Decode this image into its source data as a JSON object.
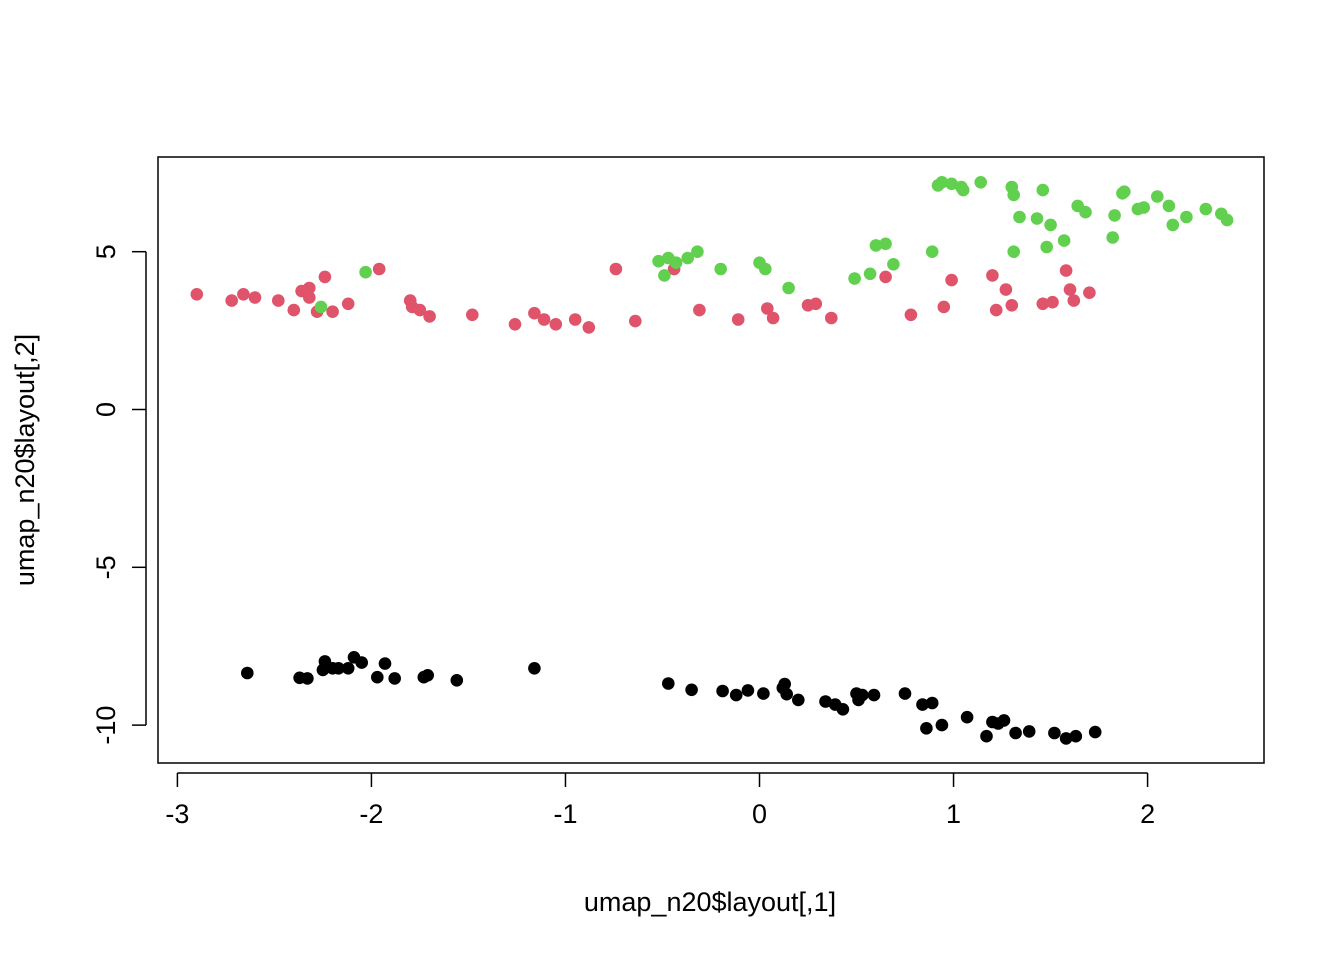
{
  "chart_data": {
    "type": "scatter",
    "xlabel": "umap_n20$layout[,1]",
    "ylabel": "umap_n20$layout[,2]",
    "xlim": [
      -3.1,
      2.6
    ],
    "ylim": [
      -11.2,
      8.0
    ],
    "x_ticks": [
      -3,
      -2,
      -1,
      0,
      1,
      2
    ],
    "x_tick_labels": [
      "-3",
      "-2",
      "-1",
      "0",
      "1",
      "2"
    ],
    "y_ticks": [
      -10,
      -5,
      0,
      5
    ],
    "y_tick_labels": [
      "-10",
      "-5",
      "0",
      "5"
    ],
    "grid": false,
    "legend": "none",
    "series": [
      {
        "color": "#000000",
        "points": [
          [
            -2.64,
            -8.35
          ],
          [
            -2.37,
            -8.5
          ],
          [
            -2.33,
            -8.52
          ],
          [
            -2.25,
            -8.25
          ],
          [
            -2.24,
            -7.98
          ],
          [
            -2.2,
            -8.2
          ],
          [
            -2.17,
            -8.2
          ],
          [
            -2.12,
            -8.2
          ],
          [
            -2.09,
            -7.85
          ],
          [
            -2.05,
            -8.02
          ],
          [
            -1.97,
            -8.48
          ],
          [
            -1.93,
            -8.05
          ],
          [
            -1.88,
            -8.52
          ],
          [
            -1.73,
            -8.48
          ],
          [
            -1.71,
            -8.42
          ],
          [
            -1.56,
            -8.58
          ],
          [
            -1.16,
            -8.2
          ],
          [
            -0.47,
            -8.68
          ],
          [
            -0.35,
            -8.88
          ],
          [
            -0.19,
            -8.92
          ],
          [
            -0.12,
            -9.05
          ],
          [
            -0.06,
            -8.9
          ],
          [
            0.02,
            -9.0
          ],
          [
            0.12,
            -8.82
          ],
          [
            0.13,
            -8.7
          ],
          [
            0.14,
            -9.02
          ],
          [
            0.2,
            -9.2
          ],
          [
            0.34,
            -9.25
          ],
          [
            0.39,
            -9.35
          ],
          [
            0.43,
            -9.5
          ],
          [
            0.5,
            -9.0
          ],
          [
            0.51,
            -9.2
          ],
          [
            0.53,
            -9.05
          ],
          [
            0.59,
            -9.05
          ],
          [
            0.75,
            -9.0
          ],
          [
            0.84,
            -9.35
          ],
          [
            0.86,
            -10.1
          ],
          [
            0.89,
            -9.3
          ],
          [
            0.94,
            -10.0
          ],
          [
            1.07,
            -9.75
          ],
          [
            1.17,
            -10.35
          ],
          [
            1.2,
            -9.9
          ],
          [
            1.23,
            -9.95
          ],
          [
            1.26,
            -9.85
          ],
          [
            1.32,
            -10.25
          ],
          [
            1.39,
            -10.2
          ],
          [
            1.52,
            -10.25
          ],
          [
            1.58,
            -10.42
          ],
          [
            1.63,
            -10.35
          ],
          [
            1.73,
            -10.22
          ]
        ]
      },
      {
        "color": "#DF536B",
        "points": [
          [
            -2.9,
            3.65
          ],
          [
            -2.72,
            3.45
          ],
          [
            -2.66,
            3.65
          ],
          [
            -2.6,
            3.55
          ],
          [
            -2.48,
            3.45
          ],
          [
            -2.4,
            3.15
          ],
          [
            -2.36,
            3.75
          ],
          [
            -2.32,
            3.85
          ],
          [
            -2.32,
            3.55
          ],
          [
            -2.28,
            3.1
          ],
          [
            -2.24,
            4.2
          ],
          [
            -2.2,
            3.1
          ],
          [
            -2.12,
            3.35
          ],
          [
            -1.96,
            4.45
          ],
          [
            -1.8,
            3.45
          ],
          [
            -1.79,
            3.25
          ],
          [
            -1.75,
            3.15
          ],
          [
            -1.7,
            2.95
          ],
          [
            -1.48,
            3.0
          ],
          [
            -1.26,
            2.7
          ],
          [
            -1.16,
            3.05
          ],
          [
            -1.11,
            2.85
          ],
          [
            -1.05,
            2.7
          ],
          [
            -0.95,
            2.85
          ],
          [
            -0.88,
            2.6
          ],
          [
            -0.74,
            4.45
          ],
          [
            -0.64,
            2.8
          ],
          [
            -0.44,
            4.45
          ],
          [
            -0.31,
            3.15
          ],
          [
            -0.11,
            2.85
          ],
          [
            0.04,
            3.2
          ],
          [
            0.07,
            2.9
          ],
          [
            0.25,
            3.3
          ],
          [
            0.29,
            3.35
          ],
          [
            0.37,
            2.9
          ],
          [
            0.65,
            4.2
          ],
          [
            0.78,
            3.0
          ],
          [
            0.95,
            3.25
          ],
          [
            0.99,
            4.1
          ],
          [
            1.2,
            4.25
          ],
          [
            1.22,
            3.15
          ],
          [
            1.27,
            3.8
          ],
          [
            1.3,
            3.3
          ],
          [
            1.46,
            3.35
          ],
          [
            1.51,
            3.4
          ],
          [
            1.58,
            4.4
          ],
          [
            1.6,
            3.8
          ],
          [
            1.62,
            3.45
          ],
          [
            1.7,
            3.7
          ]
        ]
      },
      {
        "color": "#61D04F",
        "points": [
          [
            -2.26,
            3.25
          ],
          [
            -2.03,
            4.35
          ],
          [
            -0.52,
            4.7
          ],
          [
            -0.49,
            4.25
          ],
          [
            -0.47,
            4.8
          ],
          [
            -0.43,
            4.65
          ],
          [
            -0.37,
            4.8
          ],
          [
            -0.32,
            5.0
          ],
          [
            -0.2,
            4.45
          ],
          [
            0.0,
            4.65
          ],
          [
            0.03,
            4.45
          ],
          [
            0.15,
            3.85
          ],
          [
            0.49,
            4.15
          ],
          [
            0.57,
            4.3
          ],
          [
            0.6,
            5.2
          ],
          [
            0.65,
            5.25
          ],
          [
            0.69,
            4.6
          ],
          [
            0.89,
            5.0
          ],
          [
            0.92,
            7.1
          ],
          [
            0.94,
            7.2
          ],
          [
            0.99,
            7.15
          ],
          [
            1.04,
            7.05
          ],
          [
            1.05,
            6.95
          ],
          [
            1.14,
            7.2
          ],
          [
            1.3,
            7.05
          ],
          [
            1.31,
            6.8
          ],
          [
            1.31,
            5.0
          ],
          [
            1.34,
            6.1
          ],
          [
            1.43,
            6.05
          ],
          [
            1.46,
            6.95
          ],
          [
            1.48,
            5.15
          ],
          [
            1.5,
            5.85
          ],
          [
            1.57,
            5.35
          ],
          [
            1.64,
            6.45
          ],
          [
            1.68,
            6.25
          ],
          [
            1.82,
            5.45
          ],
          [
            1.83,
            6.15
          ],
          [
            1.87,
            6.85
          ],
          [
            1.88,
            6.9
          ],
          [
            1.95,
            6.35
          ],
          [
            1.98,
            6.4
          ],
          [
            2.05,
            6.75
          ],
          [
            2.11,
            6.45
          ],
          [
            2.13,
            5.85
          ],
          [
            2.2,
            6.1
          ],
          [
            2.3,
            6.35
          ],
          [
            2.38,
            6.2
          ],
          [
            2.41,
            6.0
          ]
        ]
      }
    ]
  }
}
